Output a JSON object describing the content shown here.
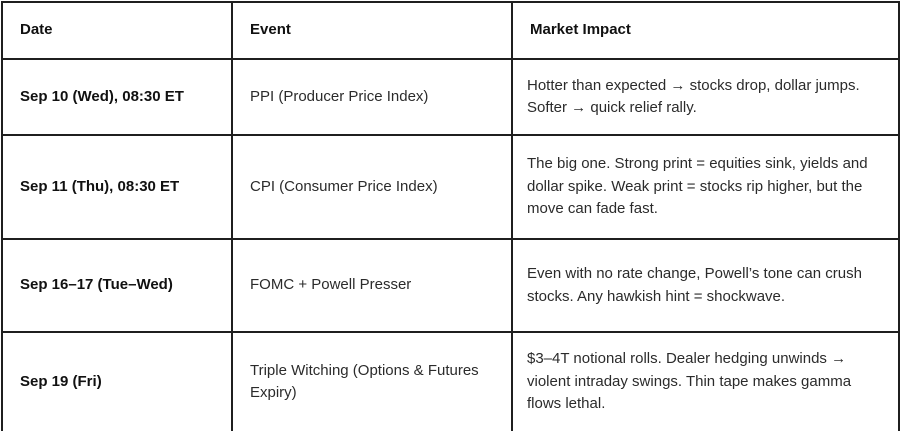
{
  "table": {
    "headers": {
      "date": "Date",
      "event": "Event",
      "impact": "Market Impact"
    },
    "rows": [
      {
        "date": "Sep 10 (Wed), 08:30 ET",
        "event": "PPI (Producer Price Index)",
        "impact": "Hotter than expected → stocks drop, dollar jumps. Softer → quick relief rally."
      },
      {
        "date": "Sep 11 (Thu), 08:30 ET",
        "event": "CPI (Consumer Price Index)",
        "impact": "The big one. Strong print = equities sink, yields and dollar spike. Weak print = stocks rip higher, but the move can fade fast."
      },
      {
        "date": "Sep 16–17 (Tue–Wed)",
        "event": "FOMC + Powell Presser",
        "impact": "Even with no rate change, Powell’s tone can crush stocks. Any hawkish hint = shockwave."
      },
      {
        "date": "Sep 19 (Fri)",
        "event": "Triple Witching (Options & Futures Expiry)",
        "impact": "$3–4T notional rolls. Dealer hedging unwinds → violent intraday swings. Thin tape makes gamma flows lethal."
      }
    ],
    "colors": {
      "border": "#1f1f1f",
      "header_text": "#111111",
      "body_text": "#2b2b2b",
      "background": "#ffffff"
    }
  }
}
